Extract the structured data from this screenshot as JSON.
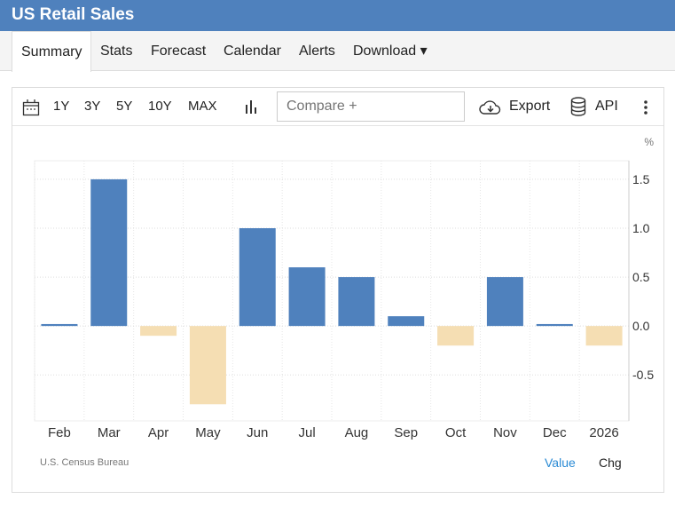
{
  "header": {
    "title": "US Retail Sales"
  },
  "tabs": [
    {
      "label": "Summary",
      "active": true
    },
    {
      "label": "Stats"
    },
    {
      "label": "Forecast"
    },
    {
      "label": "Calendar"
    },
    {
      "label": "Alerts"
    },
    {
      "label": "Download ▾"
    }
  ],
  "toolbar": {
    "ranges": [
      "1Y",
      "3Y",
      "5Y",
      "10Y",
      "MAX"
    ],
    "compare_placeholder": "Compare +",
    "export_label": "Export",
    "api_label": "API",
    "icons": [
      "calendar-icon",
      "bar-chart-icon",
      "cloud-download-icon",
      "database-icon",
      "more-vertical-icon"
    ]
  },
  "footer": {
    "source": "U.S. Census Bureau",
    "value_label": "Value",
    "chg_label": "Chg"
  },
  "colors": {
    "header": "#4f81bd",
    "positive": "#4f81bd",
    "negative": "#f5deb3",
    "active_toggle": "#2a8ad4"
  },
  "chart_data": {
    "type": "bar",
    "unit": "%",
    "categories": [
      "Feb",
      "Mar",
      "Apr",
      "May",
      "Jun",
      "Jul",
      "Aug",
      "Sep",
      "Oct",
      "Nov",
      "Dec",
      "2026"
    ],
    "values": [
      0.02,
      1.5,
      -0.1,
      -0.8,
      1.0,
      0.6,
      0.5,
      0.1,
      -0.2,
      0.5,
      0.02,
      -0.2
    ],
    "yticks": [
      "1.5",
      "1.0",
      "0.5",
      "0.0",
      "-0.5"
    ],
    "ylim": [
      -0.97,
      1.69
    ],
    "grid": true,
    "y_axis_side": "right"
  }
}
